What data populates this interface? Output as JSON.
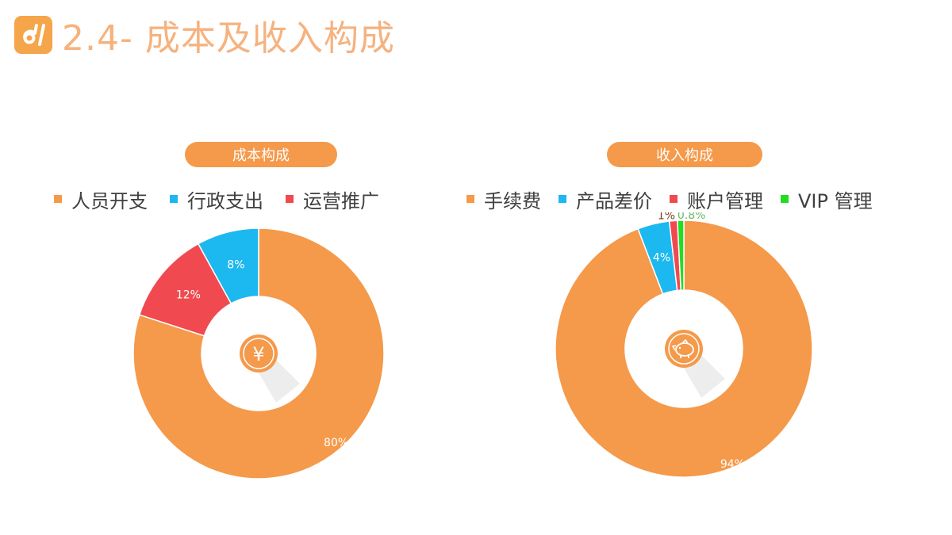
{
  "header": {
    "title": "2.4- 成本及收入构成",
    "logo_icon": "brand-logo-icon"
  },
  "colors": {
    "accent": "#f5994a",
    "blue": "#1cb8f0",
    "red": "#f04a50",
    "green": "#22dd22"
  },
  "chart_data": [
    {
      "type": "pie",
      "title": "成本构成",
      "center_icon": "yuan-icon",
      "legend_placement": "top",
      "categories": [
        "人员开支",
        "行政支出",
        "运营推广"
      ],
      "values": [
        80,
        8,
        12
      ],
      "labels": [
        "80%",
        "8%",
        "12%"
      ],
      "colors": [
        "#f5994a",
        "#1cb8f0",
        "#f04a50"
      ],
      "slice_order": [
        0,
        2,
        1
      ]
    },
    {
      "type": "pie",
      "title": "收入构成",
      "center_icon": "piggy-bank-icon",
      "legend_placement": "top",
      "categories": [
        "手续费",
        "产品差价",
        "账户管理",
        "VIP 管理"
      ],
      "values": [
        94,
        4,
        1,
        0.8
      ],
      "labels": [
        "94%",
        "4%",
        "1%",
        "0.8%"
      ],
      "colors": [
        "#f5994a",
        "#1cb8f0",
        "#f04a50",
        "#22dd22"
      ],
      "slice_order": [
        0,
        1,
        2,
        3
      ]
    }
  ]
}
